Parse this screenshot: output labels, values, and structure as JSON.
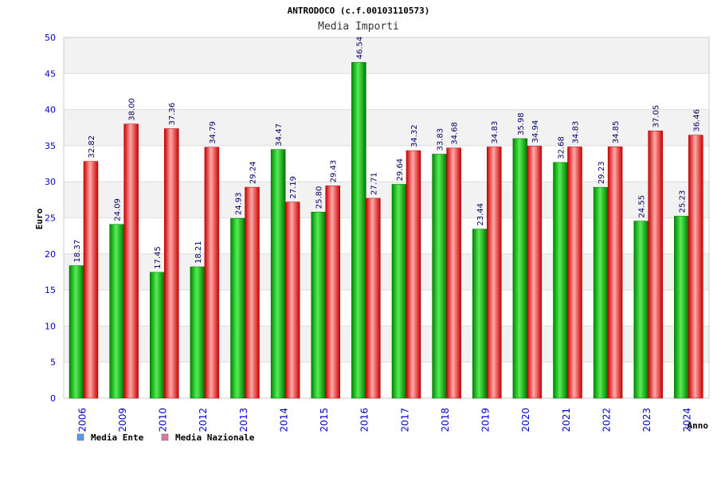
{
  "chart_data": {
    "type": "bar",
    "title": "ANTRODOCO (c.f.00103110573)",
    "subtitle": "Media Importi",
    "xlabel": "Anno",
    "ylabel": "Euro",
    "ylim": [
      0,
      50
    ],
    "yticks": [
      "0",
      "5",
      "10",
      "15",
      "20",
      "25",
      "30",
      "35",
      "40",
      "45",
      "50"
    ],
    "categories": [
      "2006",
      "2009",
      "2010",
      "2012",
      "2013",
      "2014",
      "2015",
      "2016",
      "2017",
      "2018",
      "2019",
      "2020",
      "2021",
      "2022",
      "2023",
      "2024"
    ],
    "series": [
      {
        "name": "Media Ente",
        "color": "#00aa00",
        "legend_color": "#5599ee",
        "values": [
          18.37,
          24.09,
          17.45,
          18.21,
          24.93,
          34.47,
          25.8,
          46.54,
          29.64,
          33.83,
          23.44,
          35.98,
          32.68,
          29.23,
          24.55,
          25.23
        ],
        "labels": [
          "18.37",
          "24.09",
          "17.45",
          "18.21",
          "24.93",
          "34.47",
          "25.80",
          "46.54",
          "29.64",
          "33.83",
          "23.44",
          "35.98",
          "32.68",
          "29.23",
          "24.55",
          "25.23"
        ]
      },
      {
        "name": "Media Nazionale",
        "color": "#ee0000",
        "legend_color": "#dd77aa",
        "values": [
          32.82,
          38.0,
          37.36,
          34.79,
          29.24,
          27.19,
          29.43,
          27.71,
          34.32,
          34.68,
          34.83,
          34.94,
          34.83,
          34.85,
          37.05,
          36.46
        ],
        "labels": [
          "32.82",
          "38.00",
          "37.36",
          "34.79",
          "29.24",
          "27.19",
          "29.43",
          "27.71",
          "34.32",
          "34.68",
          "34.83",
          "34.94",
          "34.83",
          "34.85",
          "37.05",
          "36.46"
        ]
      }
    ],
    "grid": true,
    "legend": "bottom-left"
  }
}
